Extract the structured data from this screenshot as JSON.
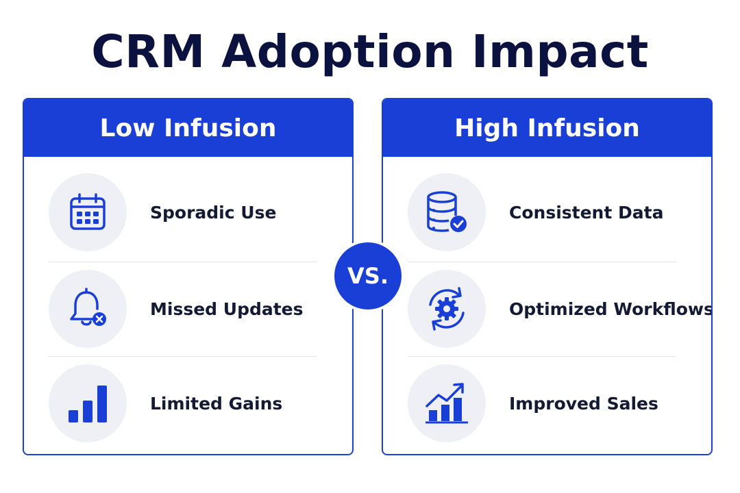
{
  "title": "CRM Adoption Impact",
  "vs_label": "VS.",
  "colors": {
    "accent": "#1a3fd6",
    "title": "#0c1240",
    "icon_bg": "#eef0f6"
  },
  "left_panel": {
    "header": "Low Infusion",
    "items": [
      {
        "label": "Sporadic Use",
        "icon": "calendar-icon"
      },
      {
        "label": "Missed Updates",
        "icon": "bell-x-icon"
      },
      {
        "label": "Limited Gains",
        "icon": "bar-chart-icon"
      }
    ]
  },
  "right_panel": {
    "header": "High Infusion",
    "items": [
      {
        "label": "Consistent Data",
        "icon": "database-check-icon"
      },
      {
        "label": "Optimized Workflows",
        "icon": "gear-cycle-icon"
      },
      {
        "label": "Improved Sales",
        "icon": "growth-chart-icon"
      }
    ]
  }
}
